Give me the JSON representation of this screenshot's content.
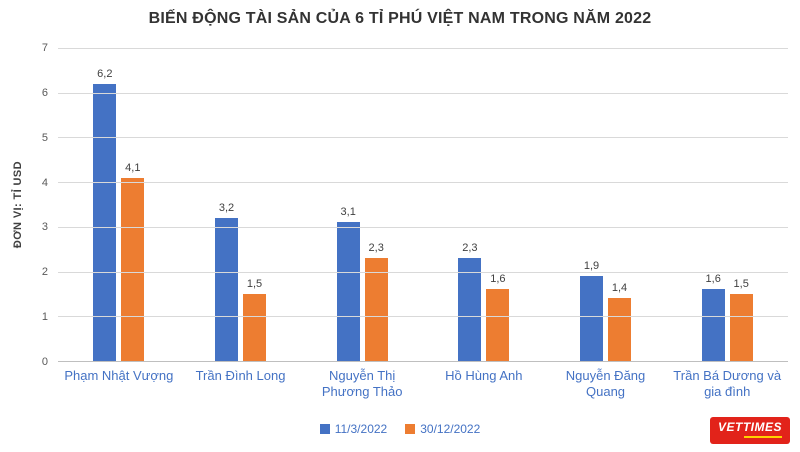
{
  "chart_data": {
    "type": "bar",
    "title": "BIẾN ĐỘNG TÀI SẢN CỦA 6 TỈ PHÚ VIỆT NAM TRONG NĂM 2022",
    "xlabel": "",
    "ylabel": "ĐƠN VỊ: TỈ USD",
    "ylim": [
      0,
      7
    ],
    "yticks": [
      0,
      1,
      2,
      3,
      4,
      5,
      6,
      7
    ],
    "grid": true,
    "legend_position": "bottom",
    "categories": [
      "Phạm Nhật Vượng",
      "Trần Đình Long",
      "Nguyễn Thị Phương Thảo",
      "Hồ Hùng Anh",
      "Nguyễn Đăng Quang",
      "Trần Bá Dương và gia đình"
    ],
    "series": [
      {
        "name": "11/3/2022",
        "color": "#4472c4",
        "values": [
          6.2,
          3.2,
          3.1,
          2.3,
          1.9,
          1.6
        ],
        "labels": [
          "6,2",
          "3,2",
          "3,1",
          "2,3",
          "1,9",
          "1,6"
        ]
      },
      {
        "name": "30/12/2022",
        "color": "#ed7d31",
        "values": [
          4.1,
          1.5,
          2.3,
          1.6,
          1.4,
          1.5
        ],
        "labels": [
          "4,1",
          "1,5",
          "2,3",
          "1,6",
          "1,4",
          "1,5"
        ]
      }
    ]
  },
  "logo": {
    "text": "VETTIMES"
  }
}
